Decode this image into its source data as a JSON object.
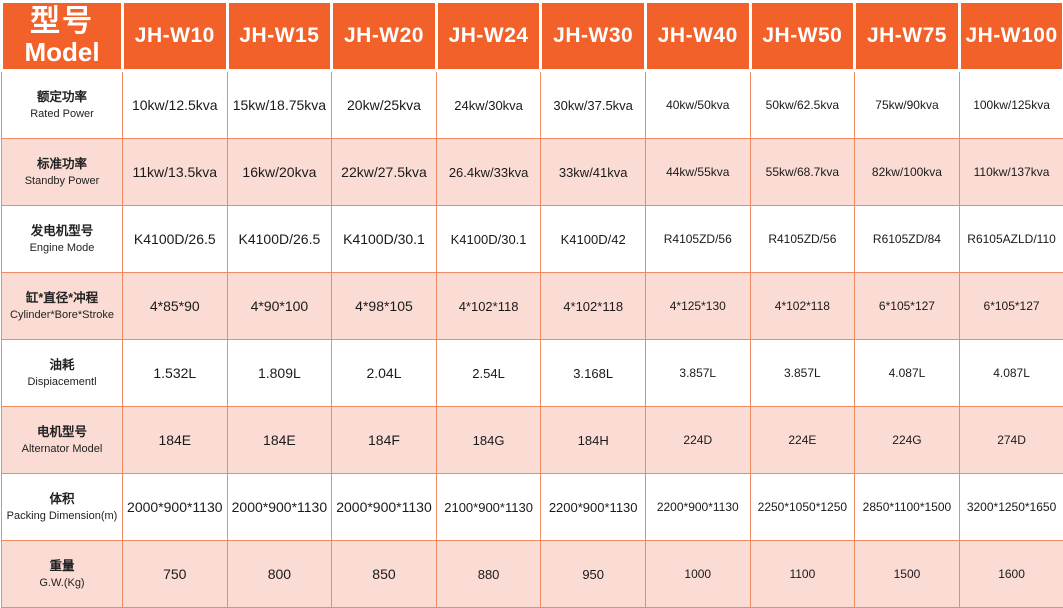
{
  "chart_data": {
    "type": "table",
    "header": {
      "model_label_zh": "型号",
      "model_label_en": "Model",
      "models": [
        "JH-W10",
        "JH-W15",
        "JH-W20",
        "JH-W24",
        "JH-W30",
        "JH-W40",
        "JH-W50",
        "JH-W75",
        "JH-W100"
      ]
    },
    "rows": [
      {
        "label_zh": "额定功率",
        "label_en": "Rated Power",
        "values": [
          "10kw/12.5kva",
          "15kw/18.75kva",
          "20kw/25kva",
          "24kw/30kva",
          "30kw/37.5kva",
          "40kw/50kva",
          "50kw/62.5kva",
          "75kw/90kva",
          "100kw/125kva"
        ]
      },
      {
        "label_zh": "标准功率",
        "label_en": "Standby Power",
        "values": [
          "11kw/13.5kva",
          "16kw/20kva",
          "22kw/27.5kva",
          "26.4kw/33kva",
          "33kw/41kva",
          "44kw/55kva",
          "55kw/68.7kva",
          "82kw/100kva",
          "110kw/137kva"
        ]
      },
      {
        "label_zh": "发电机型号",
        "label_en": "Engine Mode",
        "values": [
          "K4100D/26.5",
          "K4100D/26.5",
          "K4100D/30.1",
          "K4100D/30.1",
          "K4100D/42",
          "R4105ZD/56",
          "R4105ZD/56",
          "R6105ZD/84",
          "R6105AZLD/110"
        ]
      },
      {
        "label_zh": "缸*直径*冲程",
        "label_en": "Cylinder*Bore*Stroke",
        "values": [
          "4*85*90",
          "4*90*100",
          "4*98*105",
          "4*102*118",
          "4*102*118",
          "4*125*130",
          "4*102*118",
          "6*105*127",
          "6*105*127"
        ]
      },
      {
        "label_zh": "油耗",
        "label_en": "Dispiacementl",
        "values": [
          "1.532L",
          "1.809L",
          "2.04L",
          "2.54L",
          "3.168L",
          "3.857L",
          "3.857L",
          "4.087L",
          "4.087L"
        ]
      },
      {
        "label_zh": "电机型号",
        "label_en": "Alternator Model",
        "values": [
          "184E",
          "184E",
          "184F",
          "184G",
          "184H",
          "224D",
          "224E",
          "224G",
          "274D"
        ]
      },
      {
        "label_zh": "体积",
        "label_en": "Packing Dimension(m)",
        "values": [
          "2000*900*1130",
          "2000*900*1130",
          "2000*900*1130",
          "2100*900*1130",
          "2200*900*1130",
          "2200*900*1130",
          "2250*1050*1250",
          "2850*1100*1500",
          "3200*1250*1650"
        ]
      },
      {
        "label_zh": "重量",
        "label_en": "G.W.(Kg)",
        "values": [
          "750",
          "800",
          "850",
          "880",
          "950",
          "1000",
          "1100",
          "1500",
          "1600"
        ]
      }
    ]
  },
  "colors": {
    "header_bg": "#F2612A",
    "row_pink": "#FBDCD4",
    "row_white": "#FFFFFF",
    "grid_line": "#EE8B61",
    "header_text": "#FFFFFF",
    "cell_text": "#1A1A1A"
  }
}
